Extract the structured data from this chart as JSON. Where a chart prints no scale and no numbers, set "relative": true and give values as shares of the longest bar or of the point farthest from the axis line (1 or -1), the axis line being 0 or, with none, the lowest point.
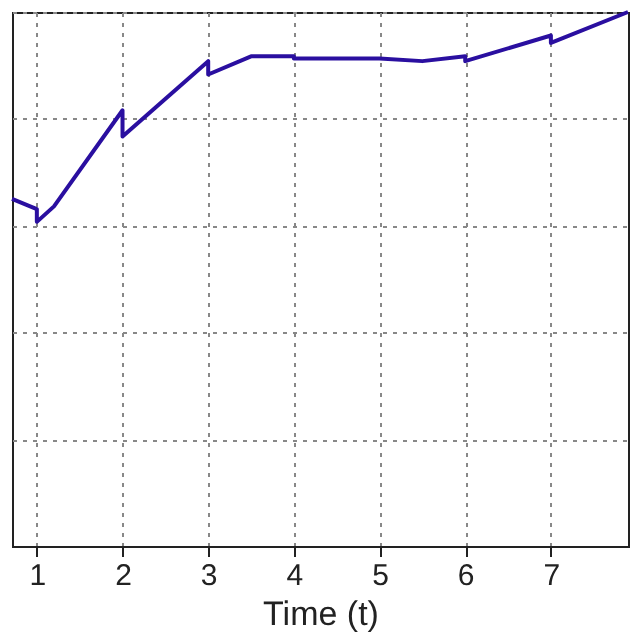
{
  "chart_data": {
    "type": "line",
    "xlabel": "Time (t)",
    "relative": true,
    "xlim": [
      0.71,
      7.9
    ],
    "xticks": [
      1,
      2,
      3,
      4,
      5,
      6,
      7
    ],
    "grid": true,
    "line_style": "solid",
    "series": [
      {
        "color": "#2a0fa0",
        "x": [
          0.71,
          1,
          1,
          1.2,
          2,
          2,
          3,
          3,
          3.5,
          4,
          4,
          5,
          5.5,
          6,
          6,
          7,
          7,
          7.9
        ],
        "values": [
          0.65,
          0.631,
          0.607,
          0.636,
          0.816,
          0.767,
          0.908,
          0.883,
          0.917,
          0.917,
          0.913,
          0.913,
          0.908,
          0.917,
          0.908,
          0.956,
          0.942,
          1
        ]
      }
    ]
  }
}
